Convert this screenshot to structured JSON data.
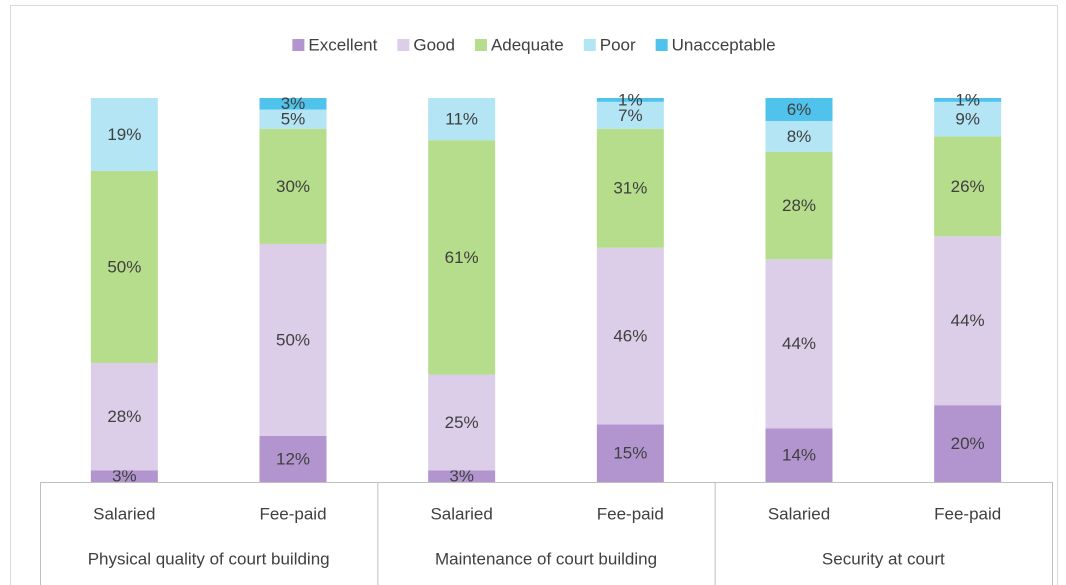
{
  "chart_data": {
    "type": "stacked-bar",
    "categories": [
      "Salaried",
      "Fee-paid",
      "Salaried",
      "Fee-paid",
      "Salaried",
      "Fee-paid"
    ],
    "groups": [
      "Physical quality of court building",
      "Maintenance of court building",
      "Security at court"
    ],
    "ylim": [
      0,
      100
    ],
    "legend": "top",
    "series": [
      {
        "name": "Excellent",
        "color": "#b295cf",
        "values": [
          3,
          12,
          3,
          15,
          14,
          20
        ],
        "value_labels": [
          "3%",
          "12%",
          "3%",
          "15%",
          "14%",
          "20%"
        ]
      },
      {
        "name": "Good",
        "color": "#dccde8",
        "values": [
          28,
          50,
          25,
          46,
          44,
          44
        ],
        "value_labels": [
          "28%",
          "50%",
          "25%",
          "46%",
          "44%",
          "44%"
        ]
      },
      {
        "name": "Adequate",
        "color": "#b5dd8b",
        "values": [
          50,
          30,
          61,
          31,
          28,
          26
        ],
        "value_labels": [
          "50%",
          "30%",
          "61%",
          "31%",
          "28%",
          "26%"
        ]
      },
      {
        "name": "Poor",
        "color": "#b3e5f5",
        "values": [
          19,
          5,
          11,
          7,
          8,
          9
        ],
        "value_labels": [
          "19%",
          "5%",
          "11%",
          "7%",
          "8%",
          "9%"
        ]
      },
      {
        "name": "Unacceptable",
        "color": "#4fc3ec",
        "values": [
          null,
          3,
          null,
          1,
          6,
          1
        ],
        "value_labels": [
          null,
          "3%",
          null,
          "1%",
          "6%",
          "1%"
        ]
      }
    ]
  }
}
